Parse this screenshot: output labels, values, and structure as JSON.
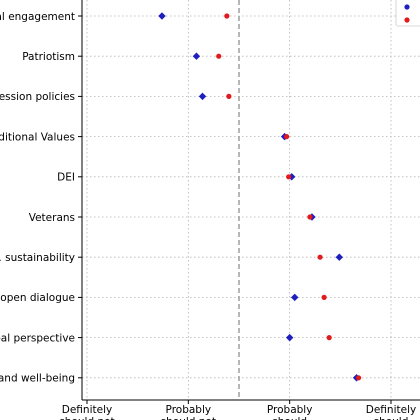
{
  "chart_data": {
    "type": "scatter",
    "title": "",
    "xlabel": "",
    "ylabel": "",
    "xlim": [
      0.75,
      3.9
    ],
    "x_ticks": [
      {
        "value": 1,
        "label": "Definitely"
      },
      {
        "value": 2,
        "label": "Probably"
      },
      {
        "value": 3,
        "label": "Probably"
      },
      {
        "value": 4,
        "label": "Definitely"
      }
    ],
    "x_tick_sublabels": [
      {
        "value": 1,
        "label": "should not"
      },
      {
        "value": 2,
        "label": "should not"
      },
      {
        "value": 3,
        "label": "should"
      },
      {
        "value": 4,
        "label": "should"
      }
    ],
    "midline": 2.5,
    "grid": true,
    "legend": "top-right",
    "categories": [
      "Political engagement",
      "Patriotism",
      "Free expression policies",
      "Traditional Values",
      "DEI",
      "Veterans",
      "Env. sustainability",
      "Civil and open dialogue",
      "Global perspective",
      "Health and well-being"
    ],
    "category_labels_visible": [
      "ical engagement",
      "Patriotism",
      "xpression policies",
      "Traditional Values",
      "DEI",
      "Veterans",
      "Env. sustainability",
      "and open dialogue",
      "lobal perspective",
      "th and well-being"
    ],
    "series": [
      {
        "color": "#1f1fbf",
        "marker": "diamond",
        "values": [
          1.74,
          2.08,
          2.14,
          2.95,
          3.02,
          3.22,
          3.49,
          3.05,
          3.0,
          3.66
        ]
      },
      {
        "color": "#e31a1c",
        "marker": "circle",
        "values": [
          2.38,
          2.3,
          2.4,
          2.97,
          2.99,
          3.2,
          3.3,
          3.34,
          3.39,
          3.68
        ]
      }
    ]
  }
}
